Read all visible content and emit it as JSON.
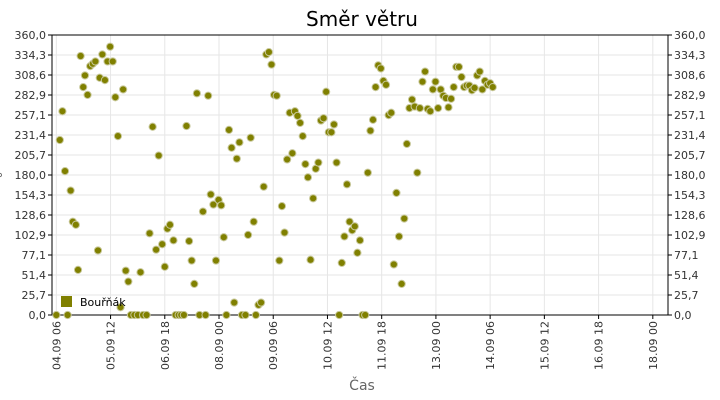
{
  "chart_data": {
    "type": "scatter",
    "title": "Směr větru",
    "xlabel": "Čas",
    "ylabel": "°",
    "ylim": [
      0,
      360
    ],
    "y_ticks": [
      "0,0",
      "25,7",
      "51,4",
      "77,1",
      "102,9",
      "128,6",
      "154,3",
      "180,0",
      "205,7",
      "231,4",
      "257,1",
      "282,9",
      "308,6",
      "334,3",
      "360,0"
    ],
    "x_ticks": [
      "04.09 06",
      "05.09 12",
      "06.09 18",
      "08.09 00",
      "09.09 06",
      "10.09 12",
      "11.09 18",
      "13.09 00",
      "14.09 06",
      "15.09 12",
      "16.09 18",
      "18.09 00"
    ],
    "x_tick_days": [
      0,
      1.25,
      2.5,
      3.75,
      5,
      6.25,
      7.5,
      8.75,
      10,
      11.25,
      12.5,
      13.75
    ],
    "xlim_days": [
      -0.1,
      14.1
    ],
    "grid": true,
    "legend": "bottom-left",
    "series": [
      {
        "name": "Bouřňák",
        "color": "#808000",
        "points": [
          [
            0.0,
            0
          ],
          [
            0.08,
            225
          ],
          [
            0.14,
            262
          ],
          [
            0.2,
            185
          ],
          [
            0.26,
            0
          ],
          [
            0.33,
            160
          ],
          [
            0.38,
            120
          ],
          [
            0.45,
            116
          ],
          [
            0.5,
            58
          ],
          [
            0.56,
            333
          ],
          [
            0.62,
            293
          ],
          [
            0.66,
            308
          ],
          [
            0.72,
            283
          ],
          [
            0.78,
            320
          ],
          [
            0.84,
            323
          ],
          [
            0.9,
            326
          ],
          [
            0.96,
            83
          ],
          [
            1.0,
            305
          ],
          [
            1.06,
            335
          ],
          [
            1.12,
            302
          ],
          [
            1.18,
            326
          ],
          [
            1.24,
            345
          ],
          [
            1.3,
            326
          ],
          [
            1.36,
            280
          ],
          [
            1.42,
            230
          ],
          [
            1.48,
            10
          ],
          [
            1.54,
            290
          ],
          [
            1.6,
            57
          ],
          [
            1.66,
            43
          ],
          [
            1.72,
            0
          ],
          [
            1.8,
            0
          ],
          [
            1.88,
            0
          ],
          [
            1.94,
            55
          ],
          [
            2.0,
            0
          ],
          [
            2.08,
            0
          ],
          [
            2.15,
            105
          ],
          [
            2.22,
            242
          ],
          [
            2.3,
            84
          ],
          [
            2.36,
            205
          ],
          [
            2.44,
            91
          ],
          [
            2.5,
            62
          ],
          [
            2.56,
            111
          ],
          [
            2.62,
            116
          ],
          [
            2.7,
            96
          ],
          [
            2.75,
            0
          ],
          [
            2.82,
            0
          ],
          [
            2.88,
            0
          ],
          [
            2.94,
            0
          ],
          [
            3.0,
            243
          ],
          [
            3.06,
            95
          ],
          [
            3.12,
            70
          ],
          [
            3.18,
            40
          ],
          [
            3.24,
            285
          ],
          [
            3.3,
            0
          ],
          [
            3.38,
            133
          ],
          [
            3.44,
            0
          ],
          [
            3.5,
            282
          ],
          [
            3.56,
            155
          ],
          [
            3.62,
            142
          ],
          [
            3.68,
            70
          ],
          [
            3.74,
            148
          ],
          [
            3.8,
            141
          ],
          [
            3.86,
            100
          ],
          [
            3.92,
            0
          ],
          [
            3.98,
            238
          ],
          [
            4.04,
            215
          ],
          [
            4.1,
            16
          ],
          [
            4.16,
            201
          ],
          [
            4.22,
            222
          ],
          [
            4.28,
            0
          ],
          [
            4.36,
            0
          ],
          [
            4.42,
            103
          ],
          [
            4.48,
            228
          ],
          [
            4.55,
            120
          ],
          [
            4.6,
            0
          ],
          [
            4.66,
            13
          ],
          [
            4.72,
            16
          ],
          [
            4.78,
            165
          ],
          [
            4.84,
            335
          ],
          [
            4.9,
            338
          ],
          [
            4.96,
            322
          ],
          [
            5.02,
            283
          ],
          [
            5.08,
            282
          ],
          [
            5.14,
            70
          ],
          [
            5.2,
            140
          ],
          [
            5.26,
            106
          ],
          [
            5.32,
            200
          ],
          [
            5.38,
            260
          ],
          [
            5.44,
            208
          ],
          [
            5.5,
            262
          ],
          [
            5.56,
            256
          ],
          [
            5.62,
            247
          ],
          [
            5.68,
            230
          ],
          [
            5.74,
            194
          ],
          [
            5.8,
            177
          ],
          [
            5.86,
            71
          ],
          [
            5.92,
            150
          ],
          [
            5.98,
            188
          ],
          [
            6.04,
            196
          ],
          [
            6.1,
            250
          ],
          [
            6.16,
            253
          ],
          [
            6.22,
            287
          ],
          [
            6.28,
            235
          ],
          [
            6.34,
            235
          ],
          [
            6.4,
            245
          ],
          [
            6.46,
            196
          ],
          [
            6.52,
            0
          ],
          [
            6.58,
            67
          ],
          [
            6.64,
            101
          ],
          [
            6.7,
            168
          ],
          [
            6.76,
            120
          ],
          [
            6.82,
            109
          ],
          [
            6.88,
            114
          ],
          [
            6.94,
            80
          ],
          [
            7.0,
            96
          ],
          [
            7.06,
            0
          ],
          [
            7.12,
            0
          ],
          [
            7.18,
            183
          ],
          [
            7.24,
            237
          ],
          [
            7.3,
            251
          ],
          [
            7.36,
            293
          ],
          [
            7.42,
            321
          ],
          [
            7.48,
            317
          ],
          [
            7.54,
            301
          ],
          [
            7.6,
            296
          ],
          [
            7.66,
            257
          ],
          [
            7.72,
            260
          ],
          [
            7.78,
            65
          ],
          [
            7.84,
            157
          ],
          [
            7.9,
            101
          ],
          [
            7.96,
            40
          ],
          [
            8.02,
            124
          ],
          [
            8.08,
            220
          ],
          [
            8.14,
            266
          ],
          [
            8.2,
            277
          ],
          [
            8.26,
            268
          ],
          [
            8.32,
            183
          ],
          [
            8.38,
            266
          ],
          [
            8.44,
            300
          ],
          [
            8.5,
            313
          ],
          [
            8.56,
            265
          ],
          [
            8.62,
            262
          ],
          [
            8.68,
            290
          ],
          [
            8.74,
            300
          ],
          [
            8.8,
            266
          ],
          [
            8.86,
            290
          ],
          [
            8.92,
            282
          ],
          [
            8.98,
            279
          ],
          [
            9.04,
            267
          ],
          [
            9.1,
            278
          ],
          [
            9.16,
            293
          ],
          [
            9.22,
            319
          ],
          [
            9.28,
            319
          ],
          [
            9.34,
            306
          ],
          [
            9.4,
            293
          ],
          [
            9.46,
            295
          ],
          [
            9.52,
            295
          ],
          [
            9.58,
            289
          ],
          [
            9.64,
            292
          ],
          [
            9.7,
            308
          ],
          [
            9.76,
            313
          ],
          [
            9.82,
            290
          ],
          [
            9.88,
            301
          ],
          [
            9.94,
            296
          ],
          [
            10.0,
            298
          ],
          [
            10.06,
            293
          ]
        ]
      }
    ]
  }
}
